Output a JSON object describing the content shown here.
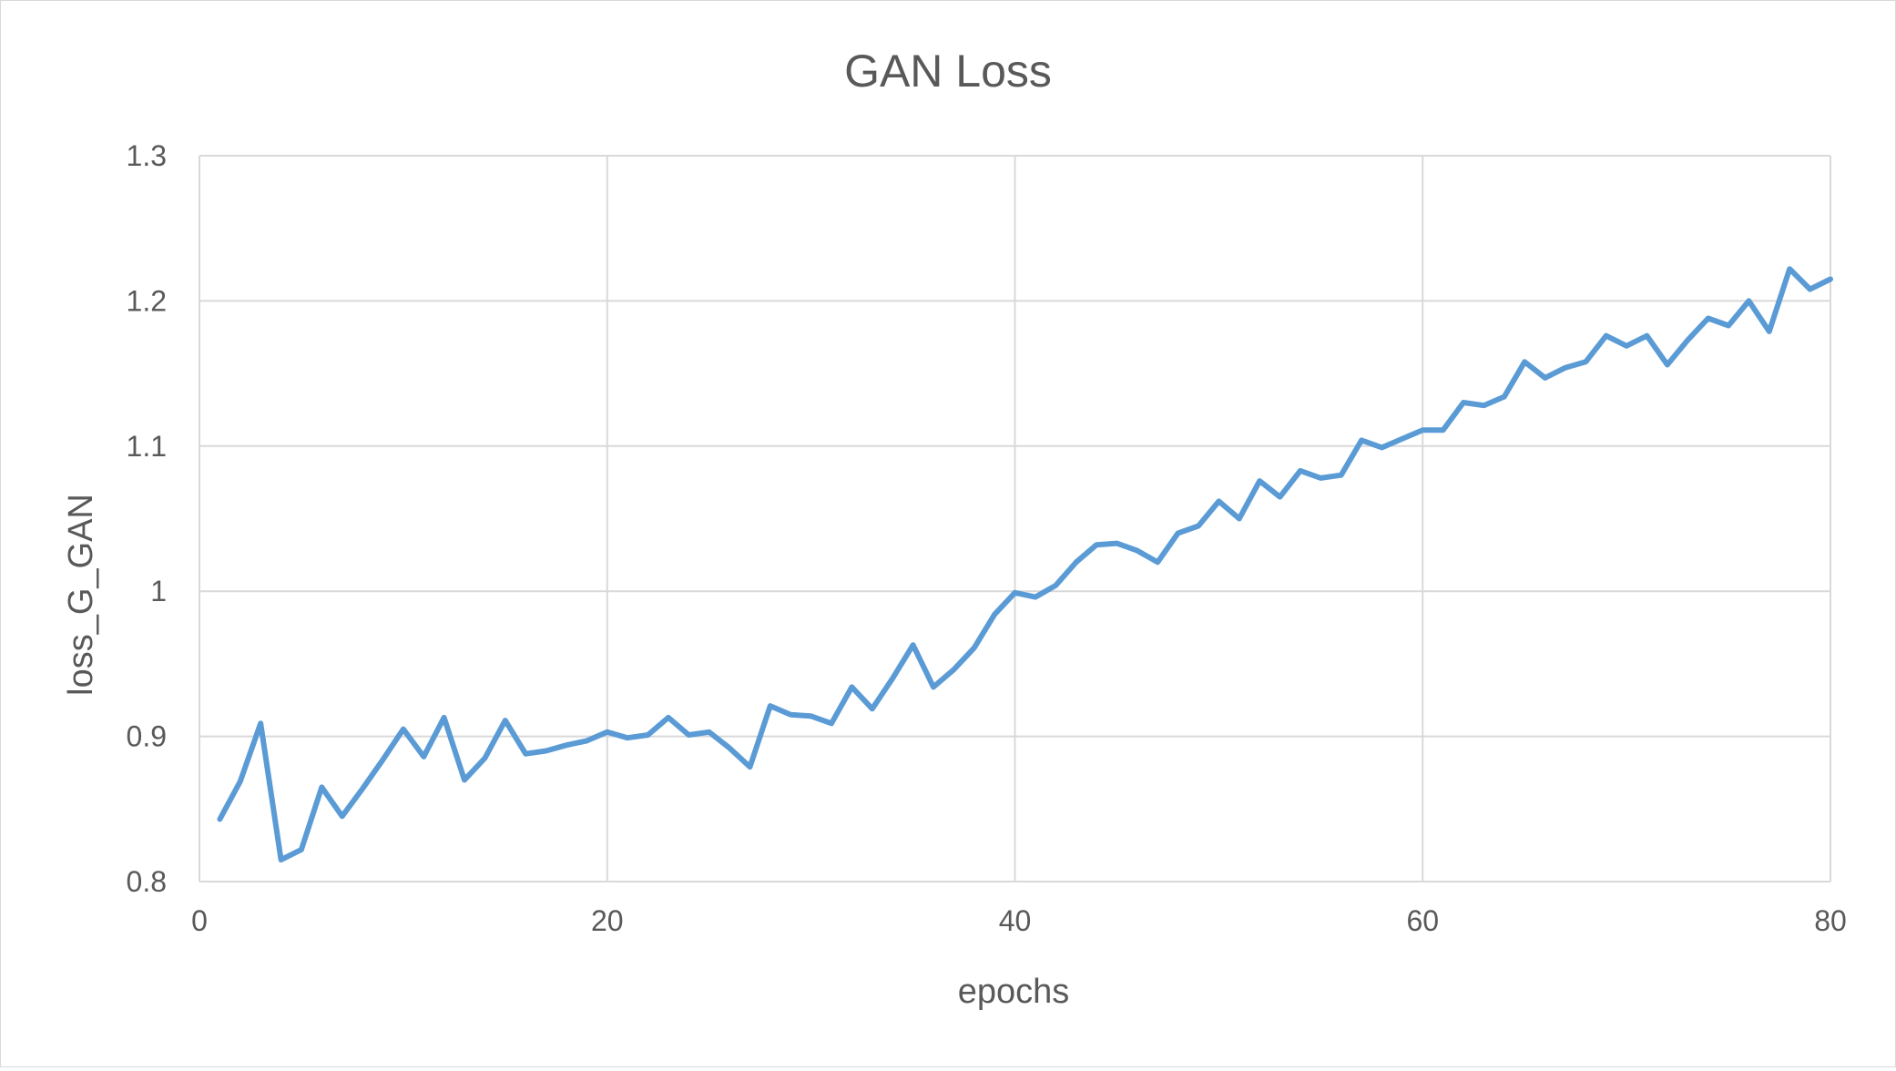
{
  "chart_data": {
    "type": "line",
    "title": "GAN Loss",
    "xlabel": "epochs",
    "ylabel": "loss_G_GAN",
    "xlim": [
      0,
      80
    ],
    "ylim": [
      0.8,
      1.3
    ],
    "xticks": [
      0,
      20,
      40,
      60,
      80
    ],
    "yticks": [
      0.8,
      0.9,
      1.0,
      1.1,
      1.2,
      1.3
    ],
    "ytick_labels": [
      "0.8",
      "0.9",
      "1",
      "1.1",
      "1.2",
      "1.3"
    ],
    "grid": true,
    "legend": "none",
    "colors": {
      "series": "#5b9bd5",
      "grid": "#d9d9d9",
      "text": "#595959"
    },
    "series": [
      {
        "x": [
          1,
          2,
          3,
          4,
          5,
          6,
          7,
          8,
          9,
          10,
          11,
          12,
          13,
          14,
          15,
          16,
          17,
          18,
          19,
          20,
          21,
          22,
          23,
          24,
          25,
          26,
          27,
          28,
          29,
          30,
          31,
          32,
          33,
          34,
          35,
          36,
          37,
          38,
          39,
          40,
          41,
          42,
          43,
          44,
          45,
          46,
          47,
          48,
          49,
          50,
          51,
          52,
          53,
          54,
          55,
          56,
          57,
          58,
          59,
          60,
          61,
          62,
          63,
          64,
          65,
          66,
          67,
          68,
          69,
          70,
          71,
          72,
          73,
          74,
          75,
          76,
          77,
          78,
          79,
          80
        ],
        "values": [
          0.843,
          0.869,
          0.909,
          0.815,
          0.822,
          0.865,
          0.845,
          0.864,
          0.884,
          0.905,
          0.886,
          0.913,
          0.87,
          0.885,
          0.911,
          0.888,
          0.89,
          0.894,
          0.897,
          0.903,
          0.899,
          0.901,
          0.913,
          0.901,
          0.903,
          0.892,
          0.879,
          0.921,
          0.915,
          0.914,
          0.909,
          0.934,
          0.919,
          0.94,
          0.963,
          0.934,
          0.946,
          0.961,
          0.984,
          0.999,
          0.996,
          1.004,
          1.02,
          1.032,
          1.033,
          1.028,
          1.02,
          1.04,
          1.045,
          1.062,
          1.05,
          1.076,
          1.065,
          1.083,
          1.078,
          1.08,
          1.104,
          1.099,
          1.105,
          1.111,
          1.111,
          1.13,
          1.128,
          1.134,
          1.158,
          1.147,
          1.154,
          1.158,
          1.176,
          1.169,
          1.176,
          1.156,
          1.173,
          1.188,
          1.183,
          1.2,
          1.179,
          1.222,
          1.208,
          1.215
        ]
      }
    ]
  }
}
